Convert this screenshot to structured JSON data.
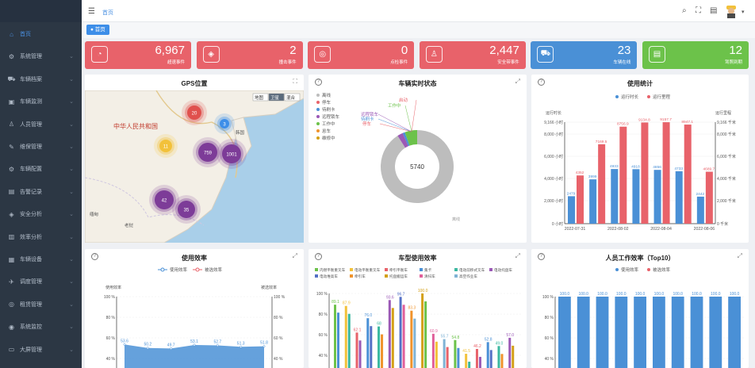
{
  "header": {
    "breadcrumb": "首页",
    "tab_label": "● 首页"
  },
  "sidebar": {
    "items": [
      {
        "label": "首页",
        "icon": "home-icon",
        "active": true
      },
      {
        "label": "系统管理",
        "icon": "gear-icon"
      },
      {
        "label": "车辆档案",
        "icon": "car-icon"
      },
      {
        "label": "车辆监测",
        "icon": "monitor-icon"
      },
      {
        "label": "人员管理",
        "icon": "user-icon"
      },
      {
        "label": "维保管理",
        "icon": "wrench-icon"
      },
      {
        "label": "车辆配置",
        "icon": "config-icon"
      },
      {
        "label": "告警记录",
        "icon": "alarm-icon"
      },
      {
        "label": "安全分析",
        "icon": "shield-icon"
      },
      {
        "label": "效率分析",
        "icon": "chart-icon"
      },
      {
        "label": "车辆设备",
        "icon": "device-icon"
      },
      {
        "label": "调度管理",
        "icon": "dispatch-icon"
      },
      {
        "label": "租赁管理",
        "icon": "lease-icon"
      },
      {
        "label": "系统监控",
        "icon": "eye-icon"
      },
      {
        "label": "大屏管理",
        "icon": "screen-icon"
      }
    ]
  },
  "stats": [
    {
      "value": "6,967",
      "label": "超速事件",
      "color": "#e8626a",
      "icon": "speed-icon"
    },
    {
      "value": "2",
      "label": "撞击事件",
      "color": "#e8626a",
      "icon": "impact-icon"
    },
    {
      "value": "0",
      "label": "点检事件",
      "color": "#e8626a",
      "icon": "check-icon"
    },
    {
      "value": "2,447",
      "label": "安全带事件",
      "color": "#e8626a",
      "icon": "seatbelt-icon"
    },
    {
      "value": "23",
      "label": "车辆在线",
      "color": "#4a90d6",
      "icon": "vehicle-icon"
    },
    {
      "value": "12",
      "label": "驾照到期",
      "color": "#6cc24a",
      "icon": "license-icon"
    }
  ],
  "gps": {
    "title": "GPS位置",
    "country_label": "中华人民共和国",
    "map_type_options": [
      "地图",
      "卫星",
      "混合"
    ],
    "place_labels": [
      "韩国",
      "缅甸",
      "老挝"
    ],
    "clusters": [
      {
        "count": "20",
        "color": "#e0504d"
      },
      {
        "count": "3",
        "color": "#3d8ee8"
      },
      {
        "count": "11",
        "color": "#f2c13a"
      },
      {
        "count": "759",
        "color": "#7d3c98"
      },
      {
        "count": "1001",
        "color": "#7d3c98"
      },
      {
        "count": "42",
        "color": "#7d3c98"
      },
      {
        "count": "35",
        "color": "#7d3c98"
      }
    ]
  },
  "realtime": {
    "title": "车辆实时状态",
    "legend": [
      {
        "name": "离线",
        "color": "#bdbdbd"
      },
      {
        "name": "停车",
        "color": "#e8626a"
      },
      {
        "name": "待刷卡",
        "color": "#4a90d6"
      },
      {
        "name": "远程锁车",
        "color": "#9b59b6"
      },
      {
        "name": "工作中",
        "color": "#6cc24a"
      },
      {
        "name": "怠车",
        "color": "#f0932b"
      },
      {
        "name": "维修中",
        "color": "#d4a017"
      }
    ],
    "center_value": "5740",
    "outer_label": "离线",
    "callouts": [
      "启动",
      "工作中",
      "远程锁车",
      "待刷卡",
      "停车"
    ]
  },
  "usage": {
    "title": "使用统计",
    "legend": [
      "运行时长",
      "运行里程"
    ],
    "left_axis_name": "运行时长",
    "right_axis_name": "运行里程",
    "left_ticks": [
      "9,166 小时",
      "8,000 小时",
      "6,000 小时",
      "4,000 小时",
      "2,000 小时",
      "0 小时"
    ],
    "right_ticks": [
      "9,166 千米",
      "8,000 千米",
      "6,000 千米",
      "4,000 千米",
      "2,000 千米",
      "0 千米"
    ],
    "x_labels": [
      "2022-07-31",
      "2022-08-02",
      "2022-08-04",
      "2022-08-06"
    ],
    "duration_labels": [
      "2479",
      "3999",
      "4933",
      "4918",
      "4856",
      "4733",
      "2442"
    ],
    "mileage_labels": [
      "4352",
      "7169.5",
      "8756.9",
      "9134.8",
      "9157.7",
      "8947.1",
      "4689.7"
    ]
  },
  "efficiency": {
    "title": "使用效率",
    "legend": [
      "使用效率",
      "被选效率"
    ],
    "left_axis_name": "使用效率",
    "right_axis_name": "被选效率",
    "ticks": [
      "100 %",
      "80 %",
      "60 %",
      "40 %"
    ],
    "point_labels": [
      "53.6",
      "50.2",
      "49.7",
      "53.1",
      "52.7",
      "51.3",
      "51.8"
    ]
  },
  "model_usage": {
    "title": "车型使用效率",
    "legend": [
      {
        "name": "内燃平衡重叉车",
        "color": "#6cc24a"
      },
      {
        "name": "电动平衡重叉车",
        "color": "#f2c13a"
      },
      {
        "name": "牵引平衡车",
        "color": "#e8626a"
      },
      {
        "name": "集卡",
        "color": "#4a90d6"
      },
      {
        "name": "电动前移式叉车",
        "color": "#3bb8a0"
      },
      {
        "name": "电动托盘车",
        "color": "#9b59b6"
      },
      {
        "name": "电动堆高车",
        "color": "#5470c6"
      },
      {
        "name": "牵引车",
        "color": "#f0932b"
      },
      {
        "name": "托盘搬运车",
        "color": "#d4a017"
      },
      {
        "name": "清扫车",
        "color": "#e05f9a"
      },
      {
        "name": "高空作业车",
        "color": "#7fb3d5"
      }
    ],
    "ticks": [
      "100 %",
      "80 %",
      "60 %",
      "40 %"
    ],
    "point_labels": [
      "89.1",
      "87.9",
      "62.1",
      "76.0",
      "68",
      "93.6",
      "96.7",
      "83.3",
      "100.0",
      "60.9",
      "55.7",
      "54.8",
      "41.5",
      "46.2",
      "52.8",
      "49.0",
      "57.0"
    ]
  },
  "staff": {
    "title": "人员工作效率（Top10）",
    "legend": [
      "使用效率",
      "被选效率"
    ],
    "ticks": [
      "100 %",
      "80 %",
      "60 %",
      "40 %"
    ],
    "bar_labels": [
      "100.0",
      "100.0",
      "100.0",
      "100.0",
      "100.0",
      "100.0",
      "100.0",
      "100.0",
      "100.0",
      "100.0"
    ]
  }
}
